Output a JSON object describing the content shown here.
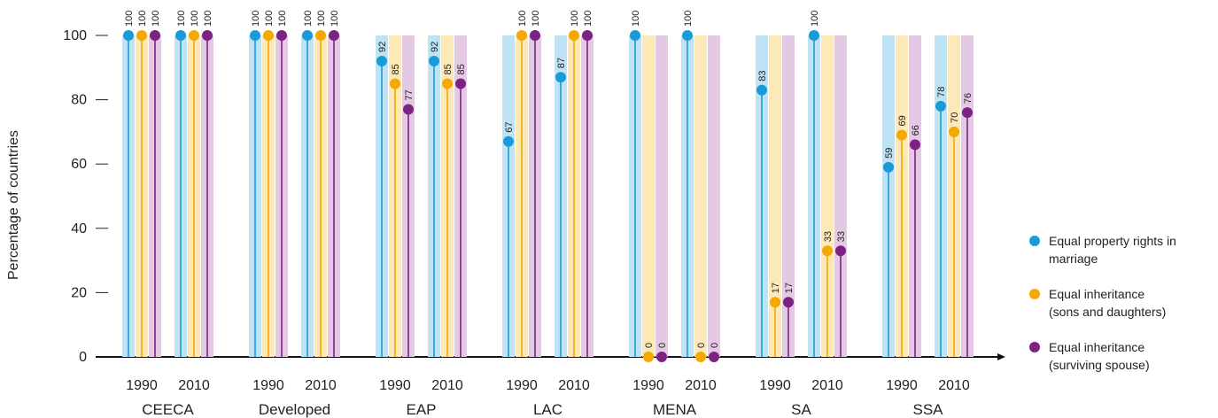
{
  "chart_data": {
    "type": "lollipop-bar",
    "ylabel": "Percentage of countries",
    "ylim": [
      0,
      100
    ],
    "yticks": [
      0,
      20,
      40,
      60,
      80,
      100
    ],
    "series": [
      {
        "name": "Equal property rights in marriage",
        "color": "#1a9bd7",
        "light": "#bde3f4"
      },
      {
        "name": "Equal inheritance (sons and daughters)",
        "color": "#f5a800",
        "light": "#fde9b8"
      },
      {
        "name": "Equal inheritance (surviving spouse)",
        "color": "#7b2282",
        "light": "#e3c9e3"
      }
    ],
    "groups": [
      {
        "region": "CEECA",
        "years": [
          {
            "year": "1990",
            "values": [
              100,
              100,
              100
            ]
          },
          {
            "year": "2010",
            "values": [
              100,
              100,
              100
            ]
          }
        ]
      },
      {
        "region": "Developed",
        "years": [
          {
            "year": "1990",
            "values": [
              100,
              100,
              100
            ]
          },
          {
            "year": "2010",
            "values": [
              100,
              100,
              100
            ]
          }
        ]
      },
      {
        "region": "EAP",
        "years": [
          {
            "year": "1990",
            "values": [
              92,
              85,
              77
            ]
          },
          {
            "year": "2010",
            "values": [
              92,
              85,
              85
            ]
          }
        ]
      },
      {
        "region": "LAC",
        "years": [
          {
            "year": "1990",
            "values": [
              67,
              100,
              100
            ]
          },
          {
            "year": "2010",
            "values": [
              87,
              100,
              100
            ]
          }
        ]
      },
      {
        "region": "MENA",
        "years": [
          {
            "year": "1990",
            "values": [
              100,
              0,
              0
            ]
          },
          {
            "year": "2010",
            "values": [
              100,
              0,
              0
            ]
          }
        ]
      },
      {
        "region": "SA",
        "years": [
          {
            "year": "1990",
            "values": [
              83,
              17,
              17
            ]
          },
          {
            "year": "2010",
            "values": [
              100,
              33,
              33
            ]
          }
        ]
      },
      {
        "region": "SSA",
        "years": [
          {
            "year": "1990",
            "values": [
              59,
              69,
              66
            ]
          },
          {
            "year": "2010",
            "values": [
              78,
              70,
              76
            ]
          }
        ]
      }
    ]
  },
  "legend": {
    "items": [
      {
        "label": "Equal property rights in\nmarriage",
        "color": "#1a9bd7"
      },
      {
        "label": "Equal inheritance\n(sons and daughters)",
        "color": "#f5a800"
      },
      {
        "label": "Equal inheritance\n(surviving spouse)",
        "color": "#7b2282"
      }
    ]
  }
}
